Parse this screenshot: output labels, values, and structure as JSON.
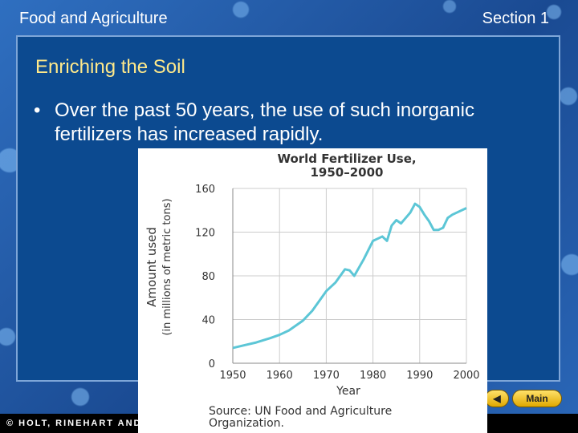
{
  "header": {
    "left": "Food and Agriculture",
    "right": "Section 1"
  },
  "title": "Enriching the Soil",
  "bullet": "Over the past 50 years, the use of such inorganic fertilizers has increased rapidly.",
  "footer": "© HOLT, RINEHART AND WINSTON",
  "buttons": [
    "Main"
  ],
  "chart_data": {
    "type": "line",
    "title": "World Fertilizer Use,",
    "subtitle": "1950–2000",
    "ylabel": [
      "Amount used",
      "(in millions of metric tons)"
    ],
    "xlabel": "Year",
    "source": [
      "Source: UN Food and Agriculture",
      "Organization."
    ],
    "x": [
      1950,
      1953,
      1955,
      1958,
      1960,
      1962,
      1965,
      1967,
      1970,
      1972,
      1974,
      1975,
      1976,
      1978,
      1980,
      1981,
      1982,
      1983,
      1984,
      1985,
      1986,
      1987,
      1988,
      1989,
      1990,
      1991,
      1992,
      1993,
      1994,
      1995,
      1996,
      1997,
      2000
    ],
    "series": [
      {
        "name": "World fertilizer use",
        "color": "#5cc6d6",
        "values": [
          14,
          17,
          19,
          23,
          26,
          30,
          39,
          48,
          66,
          74,
          86,
          85,
          80,
          95,
          112,
          114,
          116,
          112,
          126,
          131,
          128,
          133,
          138,
          146,
          143,
          136,
          130,
          122,
          122,
          124,
          133,
          136,
          142
        ]
      }
    ],
    "xlim": [
      1950,
      2000
    ],
    "xticks": [
      1950,
      1960,
      1970,
      1980,
      1990,
      2000
    ],
    "ylim": [
      0,
      160
    ],
    "yticks": [
      0,
      40,
      80,
      120,
      160
    ],
    "grid": true
  }
}
